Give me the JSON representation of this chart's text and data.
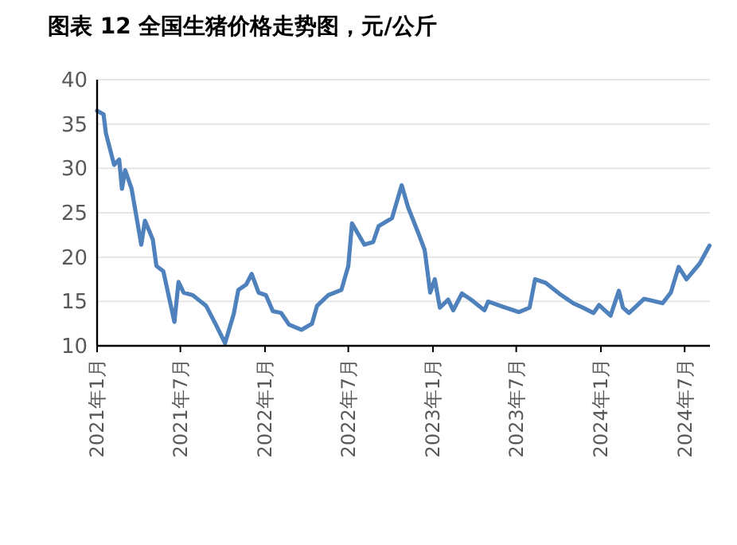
{
  "chart_data": {
    "type": "line",
    "title": "图表 12  全国生猪价格走势图，元/公斤",
    "x": [
      "2021-01-01",
      "2021-01-15",
      "2021-01-20",
      "2021-02-07",
      "2021-02-18",
      "2021-02-24",
      "2021-03-03",
      "2021-03-17",
      "2021-04-07",
      "2021-04-15",
      "2021-05-02",
      "2021-05-10",
      "2021-05-25",
      "2021-06-18",
      "2021-06-27",
      "2021-07-08",
      "2021-07-28",
      "2021-08-26",
      "2021-09-16",
      "2021-10-06",
      "2021-10-25",
      "2021-11-04",
      "2021-11-21",
      "2021-12-03",
      "2021-12-18",
      "2022-01-03",
      "2022-01-18",
      "2022-02-05",
      "2022-02-22",
      "2022-03-21",
      "2022-04-13",
      "2022-04-24",
      "2022-05-18",
      "2022-06-16",
      "2022-07-01",
      "2022-07-09",
      "2022-08-05",
      "2022-08-24",
      "2022-09-05",
      "2022-10-04",
      "2022-10-25",
      "2022-11-08",
      "2022-12-01",
      "2022-12-14",
      "2022-12-26",
      "2023-01-05",
      "2023-01-16",
      "2023-02-03",
      "2023-02-14",
      "2023-03-05",
      "2023-03-25",
      "2023-04-23",
      "2023-05-01",
      "2023-06-02",
      "2023-07-07",
      "2023-07-30",
      "2023-08-11",
      "2023-09-03",
      "2023-10-02",
      "2023-11-02",
      "2023-11-23",
      "2023-12-16",
      "2023-12-28",
      "2024-01-22",
      "2024-02-09",
      "2024-02-18",
      "2024-03-02",
      "2024-04-04",
      "2024-05-14",
      "2024-06-01",
      "2024-06-18",
      "2024-07-05",
      "2024-08-03",
      "2024-08-24"
    ],
    "series": [
      {
        "color": "#4f81bd",
        "values": [
          36.5,
          36.1,
          34,
          30.4,
          31,
          27.7,
          29.8,
          27.7,
          21.4,
          24.1,
          22,
          19,
          18.4,
          12.7,
          17.2,
          16,
          15.7,
          14.5,
          12.4,
          10.3,
          13.6,
          16.3,
          16.9,
          18.1,
          16,
          15.7,
          13.9,
          13.7,
          12.4,
          11.8,
          12.5,
          14.5,
          15.7,
          16.3,
          19,
          23.8,
          21.4,
          21.7,
          23.5,
          24.4,
          28.1,
          25.6,
          22.6,
          20.8,
          16,
          17.5,
          14.3,
          15.2,
          14,
          15.9,
          15.2,
          14,
          15,
          14.4,
          13.8,
          14.3,
          17.5,
          17.1,
          15.9,
          14.8,
          14.3,
          13.7,
          14.6,
          13.4,
          16.2,
          14.3,
          13.7,
          15.3,
          14.8,
          16,
          18.9,
          17.5,
          19.3,
          21.3
        ]
      }
    ],
    "xlim": [
      "2021-01-01",
      "2024-08-25"
    ],
    "xticks": [
      {
        "value": "2021-01-01",
        "label": "2021年1月"
      },
      {
        "value": "2021-07-01",
        "label": "2021年7月"
      },
      {
        "value": "2022-01-01",
        "label": "2022年1月"
      },
      {
        "value": "2022-07-01",
        "label": "2022年7月"
      },
      {
        "value": "2023-01-01",
        "label": "2023年1月"
      },
      {
        "value": "2023-07-01",
        "label": "2023年7月"
      },
      {
        "value": "2024-01-01",
        "label": "2024年1月"
      },
      {
        "value": "2024-07-01",
        "label": "2024年7月"
      }
    ],
    "ylim": [
      10,
      40
    ],
    "yticks": [
      10,
      15,
      20,
      25,
      30,
      35,
      40
    ],
    "grid": "y",
    "line_style": "solid",
    "marker": "none"
  }
}
